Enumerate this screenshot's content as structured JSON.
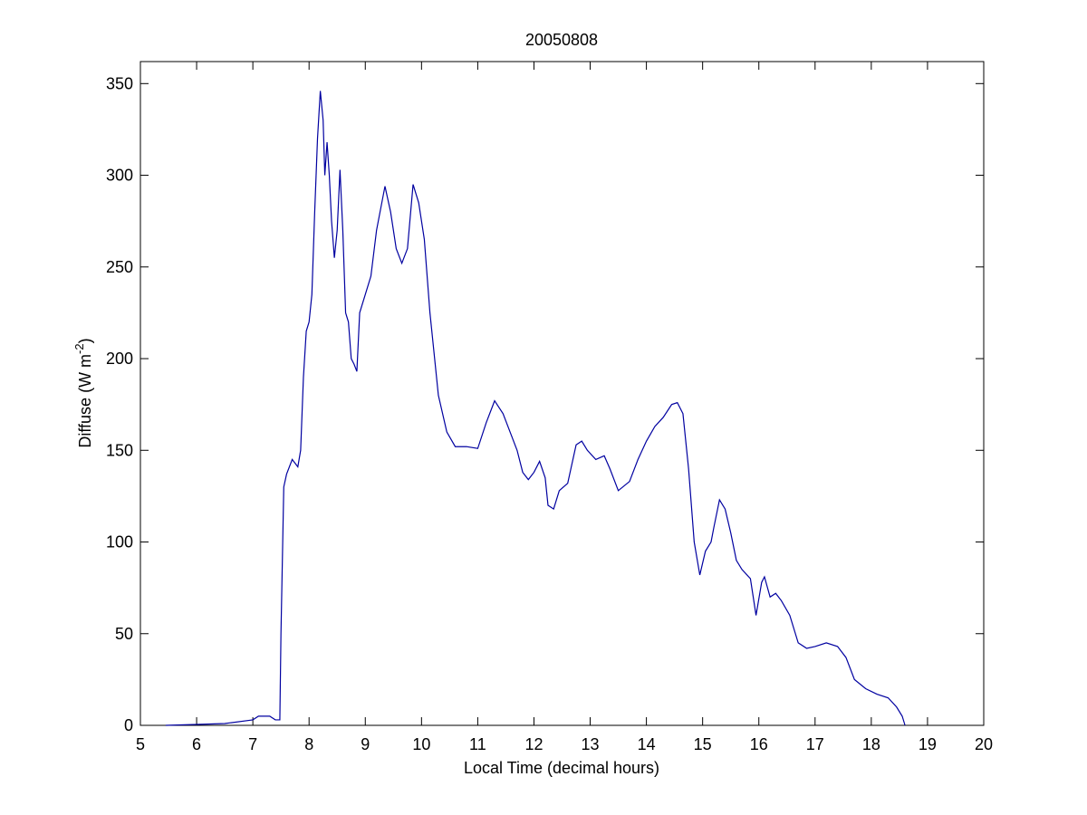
{
  "chart_data": {
    "type": "line",
    "title": "20050808",
    "xlabel": "Local Time (decimal hours)",
    "ylabel": [
      "Diffuse (W m",
      "-2",
      ")"
    ],
    "color": "#0000a0",
    "x": [
      5.45,
      6,
      6.5,
      7,
      7.1,
      7.2,
      7.3,
      7.4,
      7.48,
      7.5,
      7.55,
      7.6,
      7.7,
      7.8,
      7.85,
      7.9,
      7.95,
      8.0,
      8.05,
      8.1,
      8.15,
      8.2,
      8.25,
      8.28,
      8.32,
      8.36,
      8.4,
      8.45,
      8.5,
      8.55,
      8.6,
      8.65,
      8.7,
      8.75,
      8.8,
      8.85,
      8.9,
      9.0,
      9.1,
      9.2,
      9.35,
      9.45,
      9.55,
      9.65,
      9.75,
      9.85,
      9.95,
      10.05,
      10.15,
      10.3,
      10.45,
      10.6,
      10.8,
      11.0,
      11.15,
      11.3,
      11.45,
      11.6,
      11.7,
      11.8,
      11.9,
      12.0,
      12.1,
      12.2,
      12.25,
      12.35,
      12.45,
      12.6,
      12.75,
      12.85,
      12.95,
      13.1,
      13.25,
      13.35,
      13.5,
      13.7,
      13.85,
      14.0,
      14.15,
      14.3,
      14.45,
      14.55,
      14.65,
      14.75,
      14.85,
      14.95,
      15.05,
      15.15,
      15.2,
      15.3,
      15.4,
      15.5,
      15.6,
      15.7,
      15.85,
      15.95,
      16.05,
      16.1,
      16.2,
      16.3,
      16.4,
      16.55,
      16.7,
      16.85,
      17.0,
      17.2,
      17.4,
      17.55,
      17.7,
      17.9,
      18.1,
      18.3,
      18.45,
      18.55,
      18.6
    ],
    "values": [
      0,
      0.5,
      1,
      3,
      5,
      5,
      5,
      3,
      3,
      50,
      130,
      137,
      145,
      141,
      150,
      190,
      215,
      220,
      235,
      280,
      320,
      346,
      330,
      300,
      318,
      300,
      275,
      255,
      270,
      303,
      270,
      225,
      220,
      200,
      197,
      193,
      225,
      235,
      245,
      270,
      294,
      280,
      260,
      252,
      260,
      295,
      285,
      265,
      225,
      180,
      160,
      152,
      152,
      151,
      165,
      177,
      170,
      158,
      150,
      138,
      134,
      138,
      144,
      135,
      120,
      118,
      128,
      132,
      153,
      155,
      150,
      145,
      147,
      140,
      128,
      133,
      145,
      155,
      163,
      168,
      175,
      176,
      170,
      140,
      100,
      82,
      95,
      100,
      108,
      123,
      118,
      105,
      90,
      85,
      80,
      60,
      78,
      81,
      70,
      72,
      68,
      60,
      45,
      42,
      43,
      45,
      43,
      37,
      25,
      20,
      17,
      15,
      10,
      5,
      0
    ],
    "xlim": [
      5,
      20
    ],
    "xticks": [
      5,
      6,
      7,
      8,
      9,
      10,
      11,
      12,
      13,
      14,
      15,
      16,
      17,
      18,
      19,
      20
    ],
    "ylim": [
      0,
      362
    ],
    "yticks": [
      0,
      50,
      100,
      150,
      200,
      250,
      300,
      350
    ]
  }
}
